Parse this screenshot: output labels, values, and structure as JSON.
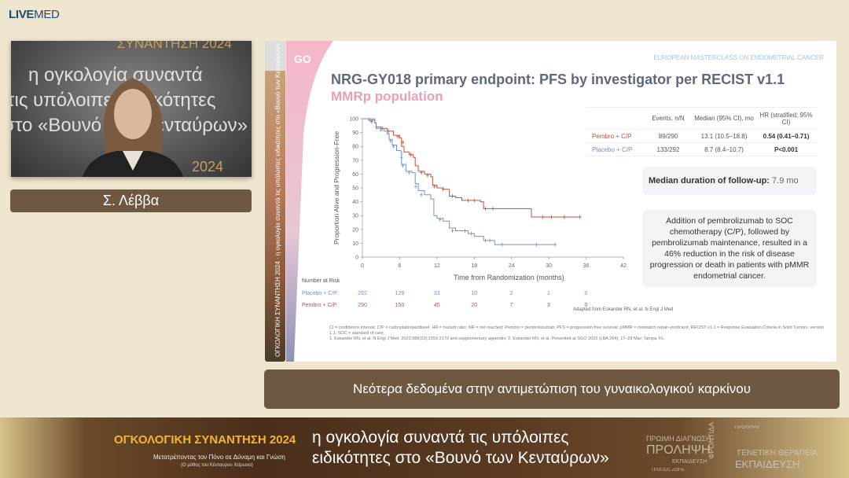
{
  "brand": {
    "bold": "LIVE",
    "light": "MED"
  },
  "video": {
    "bg_lines": [
      "ΣΥΝΑΝΤΗΣΗ 2024",
      "η ογκολογία συναντά",
      "τις υπόλοιπες ειδικότητες",
      "στο «Βουνό των Κενταύρων»",
      "2024"
    ]
  },
  "speaker": {
    "name": "Σ. Λέββα"
  },
  "sidestrip": {
    "text": "ΟΓΚΟΛΟΓΙΚΗ ΣΥΝΑΝΤΗΣΗ 2024 · η ογκολογία συναντά τις υπόλοιπες ειδικότητες στο «Βουνό των Κενταύρων»"
  },
  "slide": {
    "logo_text": "GO UP",
    "header_right": "EUROPEAN MASTERCLASS ON ENDOMETRIAL CANCER",
    "title": "NRG-GY018 primary endpoint: PFS by investigator per RECIST v1.1",
    "subtitle": "MMRp population",
    "table": {
      "headers": [
        "",
        "Events, n/N",
        "Median (95% CI), mo",
        "HR (stratified; 95% CI)"
      ],
      "rows": [
        {
          "arm": "Pembro + C/P",
          "events": "89/290",
          "median": "13.1 (10.5–18.8)",
          "hr": "0.54 (0.41–0.71)"
        },
        {
          "arm": "Placebo + C/P",
          "events": "133/292",
          "median": "8.7 (8.4–10.7)",
          "hr": "P<0.001"
        }
      ]
    },
    "followup": {
      "label": "Median duration of follow-up:",
      "value": "7.9 mo"
    },
    "summary": "Addition of pembrolizumab to SOC chemotherapy (C/P), followed by pembrolizumab maintenance, resulted in a 46% reduction in the risk of disease progression or death in patients with pMMR endometrial cancer.",
    "risk": {
      "label": "Number at Risk",
      "rows": [
        {
          "arm": "Placebo + C/P",
          "values": [
            "292",
            "129",
            "33",
            "10",
            "2",
            "1",
            "0"
          ]
        },
        {
          "arm": "Pembro + C/P",
          "values": [
            "290",
            "150",
            "45",
            "20",
            "7",
            "3",
            "0"
          ]
        }
      ]
    },
    "adapted": "Adapted from Eskander RN, et al. N Engl J Med",
    "footnotes": [
      "CI = confidence interval; C/P = carboplatin/paclitaxel; HR = hazard ratio; NR = not reached; Pembro = pembrolizumab; PFS = progression-free survival; pMMR = mismatch repair–proficient; RECIST v1.1 = Response Evaluation Criteria in Solid Tumors, version 1.1; SOC = standard of care.",
      "1. Eskander RN, et al. N Engl J Med. 2023;388(23):2159-2170 and supplementary appendix; 2. Eskander RN, et al. Presented at SGO 2023 (LBA 264); 17–28 Mar; Tampa, FL."
    ]
  },
  "chart_data": {
    "type": "line",
    "xlabel": "Time from Randomization (months)",
    "ylabel": "Proportion Alive and Progression-Free",
    "xlim": [
      0,
      42
    ],
    "ylim": [
      0,
      100
    ],
    "xticks": [
      0,
      6,
      12,
      18,
      24,
      30,
      36,
      42
    ],
    "yticks": [
      0,
      10,
      20,
      30,
      40,
      50,
      60,
      70,
      80,
      90,
      100
    ],
    "series": [
      {
        "name": "Pembro + C/P",
        "color": "#c0503a",
        "step": [
          [
            0,
            100
          ],
          [
            1,
            99
          ],
          [
            2,
            97
          ],
          [
            2.2,
            94
          ],
          [
            3,
            93
          ],
          [
            4,
            91
          ],
          [
            5,
            88
          ],
          [
            6,
            86
          ],
          [
            6.3,
            80
          ],
          [
            6.7,
            76
          ],
          [
            7.5,
            74
          ],
          [
            8.2,
            72
          ],
          [
            8.5,
            66
          ],
          [
            9,
            62
          ],
          [
            10,
            60
          ],
          [
            11,
            58
          ],
          [
            11.3,
            52
          ],
          [
            12,
            50
          ],
          [
            13,
            49
          ],
          [
            14,
            44
          ],
          [
            15,
            43
          ],
          [
            16,
            41
          ],
          [
            19,
            40
          ],
          [
            19.5,
            35
          ],
          [
            27.2,
            35
          ],
          [
            27.2,
            29
          ],
          [
            35,
            29
          ]
        ],
        "censored": [
          [
            1.5,
            98
          ],
          [
            3.2,
            93
          ],
          [
            4.2,
            91
          ],
          [
            5.7,
            87
          ],
          [
            6.5,
            83
          ],
          [
            7.8,
            74
          ],
          [
            9.5,
            61
          ],
          [
            10.5,
            59
          ],
          [
            11.6,
            51
          ],
          [
            13,
            49
          ],
          [
            14.5,
            44
          ],
          [
            17,
            41
          ],
          [
            18,
            41
          ],
          [
            19.8,
            35
          ],
          [
            21,
            35
          ],
          [
            29,
            29
          ],
          [
            30.4,
            29
          ],
          [
            32.5,
            29
          ],
          [
            35,
            29
          ]
        ]
      },
      {
        "name": "Placebo + C/P",
        "color": "#6e93c4",
        "step": [
          [
            0,
            100
          ],
          [
            2,
            97
          ],
          [
            2.2,
            93
          ],
          [
            3.5,
            91
          ],
          [
            4,
            89
          ],
          [
            4.3,
            85
          ],
          [
            4.8,
            81
          ],
          [
            5.5,
            77
          ],
          [
            6.2,
            76
          ],
          [
            6.3,
            67
          ],
          [
            7,
            62
          ],
          [
            8,
            61
          ],
          [
            8.5,
            53
          ],
          [
            9,
            48
          ],
          [
            10,
            45
          ],
          [
            11,
            42
          ],
          [
            11.5,
            30
          ],
          [
            12,
            28
          ],
          [
            13,
            26
          ],
          [
            14,
            21
          ],
          [
            15,
            19
          ],
          [
            17,
            17
          ],
          [
            18,
            15
          ],
          [
            19.5,
            12
          ],
          [
            21,
            12
          ],
          [
            21.3,
            9
          ],
          [
            31,
            9
          ]
        ],
        "censored": [
          [
            1.2,
            99
          ],
          [
            3,
            92
          ],
          [
            4.5,
            84
          ],
          [
            5,
            80
          ],
          [
            6.3,
            72
          ],
          [
            6.5,
            66
          ],
          [
            7.5,
            61
          ],
          [
            8.6,
            51
          ],
          [
            9.5,
            45
          ],
          [
            12.5,
            27
          ],
          [
            14.5,
            19
          ],
          [
            16.5,
            19
          ],
          [
            17.5,
            17
          ],
          [
            19.8,
            12
          ],
          [
            20.5,
            12
          ],
          [
            22.5,
            9
          ],
          [
            28,
            9
          ],
          [
            31,
            9
          ]
        ]
      }
    ]
  },
  "caption": "Νεότερα δεδομένα στην αντιμετώπιση του γυναικολογικού καρκίνου",
  "banner": {
    "event": "ΟΓΚΟΛΟΓΙΚΗ ΣΥΝΑΝΤΗΣΗ 2024",
    "tagline": "Μετατρέποντας τον Πόνο σε Δύναμη και Γνώση",
    "tagline_sub": "(Ο μύθος του Κένταυρου Χείρωνα)",
    "headline_1": "η ογκολογία συναντά τις υπόλοιπες",
    "headline_2": "ειδικότητες στο «Βουνό των Κενταύρων»",
    "keywords": [
      "ΠΡΩΙΜΗ ΔΙΑΓΝΩΣΗ",
      "ΠΡΟΛΗΨΗ",
      "ΓΕΝΕΤΙΚΗ ΘΕΡΑΠΕΙΑ",
      "ΕΚΠΑΙΔΕΥΣΗ",
      "ΕΚΠΑΙΔΕΥΣΗ",
      "ΤΡΟΠΟΣ ΖΩΗΣ",
      "ΦΡΟΝΤΙΔΑ",
      "ΠΡΟΛΗΨΗ"
    ]
  }
}
